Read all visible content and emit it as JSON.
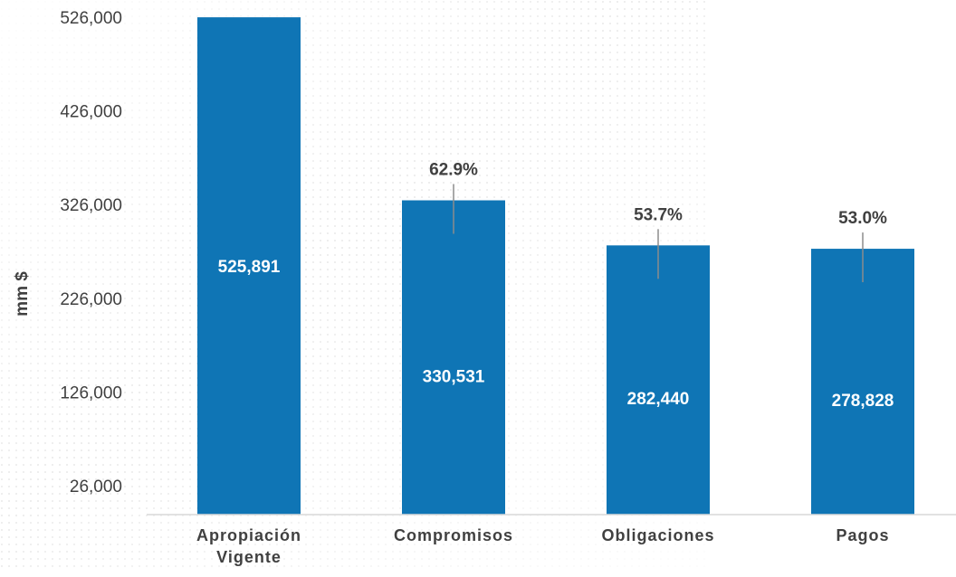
{
  "chart_data": {
    "type": "bar",
    "ylabel": "mm $",
    "ylim": [
      26000,
      526000
    ],
    "yticks": [
      "526,000",
      "426,000",
      "326,000",
      "226,000",
      "126,000",
      "26,000"
    ],
    "ytick_values": [
      526000,
      426000,
      326000,
      226000,
      126000,
      26000
    ],
    "categories": [
      "Apropiación Vigente",
      "Compromisos",
      "Obligaciones",
      "Pagos"
    ],
    "category_lines": [
      [
        "Apropiación",
        "Vigente"
      ],
      [
        "Compromisos"
      ],
      [
        "Obligaciones"
      ],
      [
        "Pagos"
      ]
    ],
    "values": [
      525891,
      330531,
      282440,
      278828
    ],
    "value_labels": [
      "525,891",
      "330,531",
      "282,440",
      "278,828"
    ],
    "percent_labels": [
      "",
      "62.9%",
      "53.7%",
      "53.0%"
    ],
    "bar_color": "#0f75b5",
    "leader_line_color": "#8c8c8c",
    "grid": false,
    "background": "dotted-gray"
  }
}
